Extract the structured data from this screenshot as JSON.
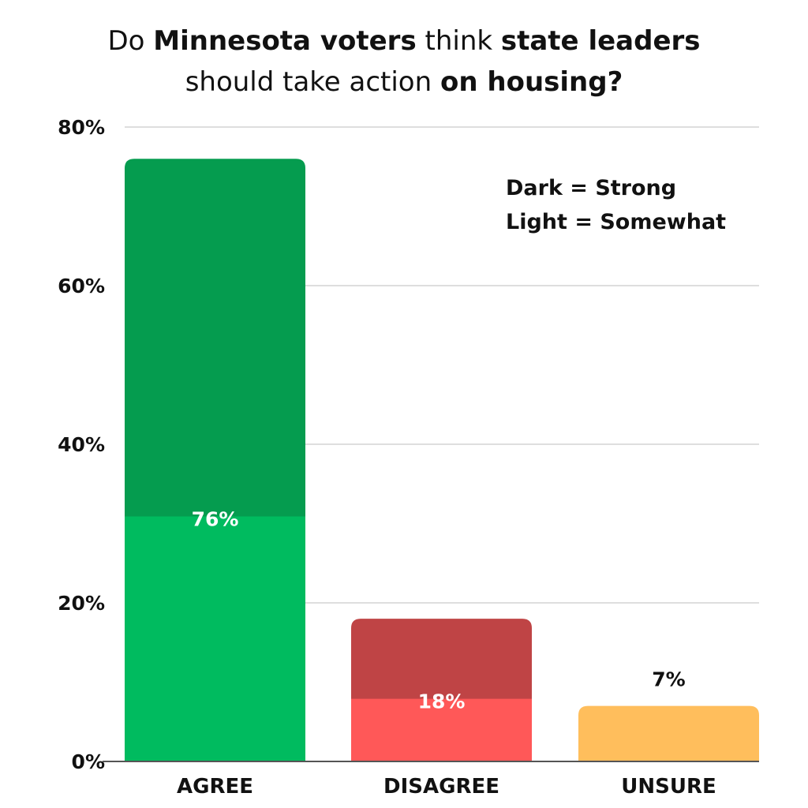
{
  "title": {
    "parts": [
      {
        "text": "Do ",
        "bold": false
      },
      {
        "text": "Minnesota voters",
        "bold": true
      },
      {
        "text": " think ",
        "bold": false
      },
      {
        "text": "state leaders",
        "bold": true
      },
      {
        "text": "|",
        "bold": false
      },
      {
        "text": "should take action ",
        "bold": false
      },
      {
        "text": "on housing?",
        "bold": true
      }
    ]
  },
  "legend": {
    "dark": "Dark = Strong",
    "light": "Light = Somewhat"
  },
  "colors": {
    "agree_dark": "#059c4f",
    "agree_light": "#00bb5f",
    "disagree_dark": "#bf4445",
    "disagree_light": "#ff5858",
    "unsure": "#ffbe5c",
    "grid": "#d4d4d4",
    "axis": "#555555"
  },
  "chart_data": {
    "type": "bar",
    "stacked": true,
    "categories": [
      "AGREE",
      "DISAGREE",
      "UNSURE"
    ],
    "totals": [
      76,
      18,
      7
    ],
    "total_labels": [
      "76%",
      "18%",
      "7%"
    ],
    "series": [
      {
        "values": [
          31,
          8,
          7
        ]
      },
      {
        "values": [
          45,
          10,
          0
        ]
      }
    ],
    "y_ticks": [
      {
        "value": 0,
        "label": "0%"
      },
      {
        "value": 20,
        "label": "20%"
      },
      {
        "value": 40,
        "label": "40%"
      },
      {
        "value": 60,
        "label": "60%"
      },
      {
        "value": 80,
        "label": "80%"
      }
    ],
    "ylim": [
      0,
      80
    ],
    "grid": true
  }
}
